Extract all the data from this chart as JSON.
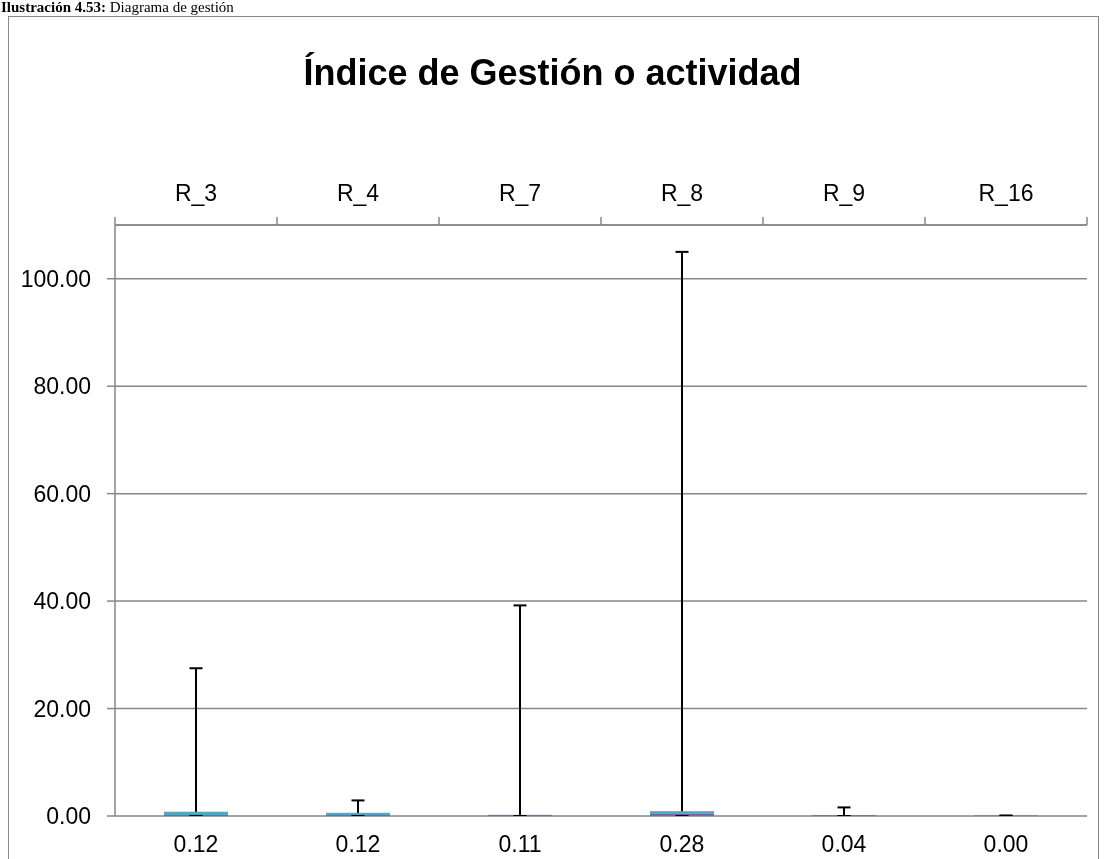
{
  "chart_data": {
    "type": "box",
    "title": "Índice de Gestión o actividad",
    "categories": [
      "R_3",
      "R_4",
      "R_7",
      "R_8",
      "R_9",
      "R_16"
    ],
    "boxes": [
      {
        "low": 0,
        "q1": 0,
        "median": 0.12,
        "q3": 0.8,
        "high": 27.5
      },
      {
        "low": 0,
        "q1": 0,
        "median": 0.12,
        "q3": 0.6,
        "high": 2.9
      },
      {
        "low": 0,
        "q1": 0,
        "median": 0.11,
        "q3": 0.2,
        "high": 39.2
      },
      {
        "low": 0,
        "q1": 0,
        "median": 0.28,
        "q3": 0.9,
        "high": 105
      },
      {
        "low": 0,
        "q1": 0,
        "median": 0.04,
        "q3": 0.1,
        "high": 1.6
      },
      {
        "low": 0,
        "q1": 0,
        "median": 0,
        "q3": 0.1,
        "high": 0.1
      }
    ],
    "color": "#4bacc6",
    "ylim": [
      0,
      110
    ],
    "yticks": [
      {
        "value": 0,
        "label": "0.00"
      },
      {
        "value": 20,
        "label": "20.00"
      },
      {
        "value": 40,
        "label": "40.00"
      },
      {
        "value": 60,
        "label": "60.00"
      },
      {
        "value": 80,
        "label": "80.00"
      },
      {
        "value": 100,
        "label": "100.00"
      }
    ],
    "grid": "y",
    "annotations": [
      "Ilustración 4.53: Diagrama de gestión",
      "0.12",
      "0.12",
      "0.11",
      "0.28",
      "0.04",
      "0.00"
    ]
  }
}
